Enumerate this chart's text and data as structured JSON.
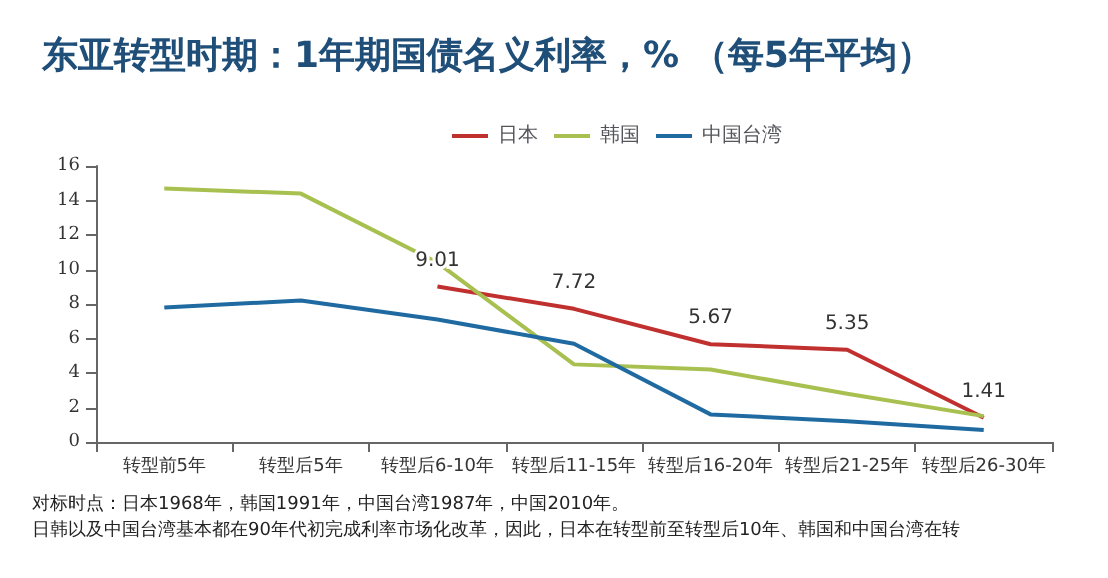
{
  "chart_data": {
    "type": "line",
    "title": "东亚转型时期：1年期国债名义利率，% （每5年平均）",
    "categories": [
      "转型前5年",
      "转型后5年",
      "转型后6-10年",
      "转型后11-15年",
      "转型后16-20年",
      "转型后21-25年",
      "转型后26-30年"
    ],
    "series": [
      {
        "name": "日本",
        "color": "#c0302f",
        "values": [
          null,
          null,
          9.01,
          7.72,
          5.67,
          5.35,
          1.41
        ],
        "value_labels": [
          null,
          null,
          "9.01",
          "7.72",
          "5.67",
          "5.35",
          "1.41"
        ]
      },
      {
        "name": "韩国",
        "color": "#a8c050",
        "values": [
          14.7,
          14.4,
          10.4,
          4.5,
          4.2,
          2.8,
          1.5
        ]
      },
      {
        "name": "中国台湾",
        "color": "#1f6aa0",
        "values": [
          7.8,
          8.2,
          7.1,
          5.7,
          1.6,
          1.2,
          0.7
        ]
      }
    ],
    "ylim": [
      0,
      16
    ],
    "yticks": [
      0,
      2,
      4,
      6,
      8,
      10,
      12,
      14,
      16
    ],
    "grid": false,
    "legend": "top right",
    "marker": "none",
    "line_style": "solid",
    "annotations": [
      "对标时点：日本1968年，韩国1991年，中国台湾1987年，中国2010年。",
      "日韩以及中国台湾基本都在90年代初完成利率市场化改革，因此，日本在转型前至转型后10年、韩国和中国台湾在转"
    ]
  }
}
